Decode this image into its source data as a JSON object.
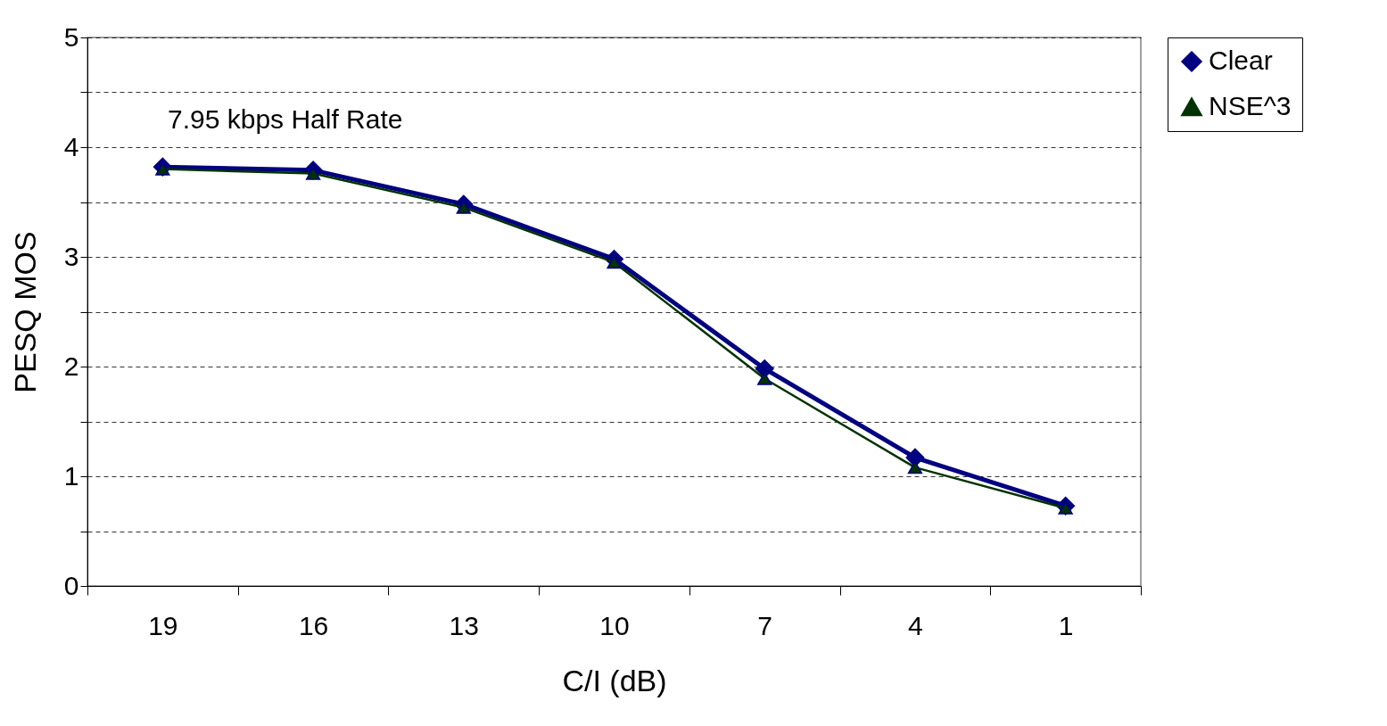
{
  "chart_data": {
    "type": "line",
    "xlabel": "C/I (dB)",
    "ylabel": "PESQ MOS",
    "annotations": [
      "7.95 kbps Half Rate"
    ],
    "categories": [
      "19",
      "16",
      "13",
      "10",
      "7",
      "4",
      "1"
    ],
    "series": [
      {
        "name": "Clear",
        "color": "#000080",
        "marker": "diamond",
        "values": [
          3.82,
          3.79,
          3.48,
          2.98,
          1.98,
          1.17,
          0.73
        ]
      },
      {
        "name": "NSE^3",
        "color": "#003300",
        "marker": "triangle",
        "values": [
          3.8,
          3.76,
          3.45,
          2.95,
          1.89,
          1.08,
          0.71
        ]
      }
    ],
    "ylim": [
      0,
      5
    ],
    "yticks": [
      0,
      {
        "value": 0.5,
        "label": null
      },
      1,
      {
        "value": 1.5,
        "label": null
      },
      2,
      {
        "value": 2.5,
        "label": null
      },
      3,
      {
        "value": 3.5,
        "label": null
      },
      4,
      {
        "value": 4.5,
        "label": null
      },
      5
    ],
    "grid": "y",
    "legend": "right",
    "line_style": "solid"
  }
}
